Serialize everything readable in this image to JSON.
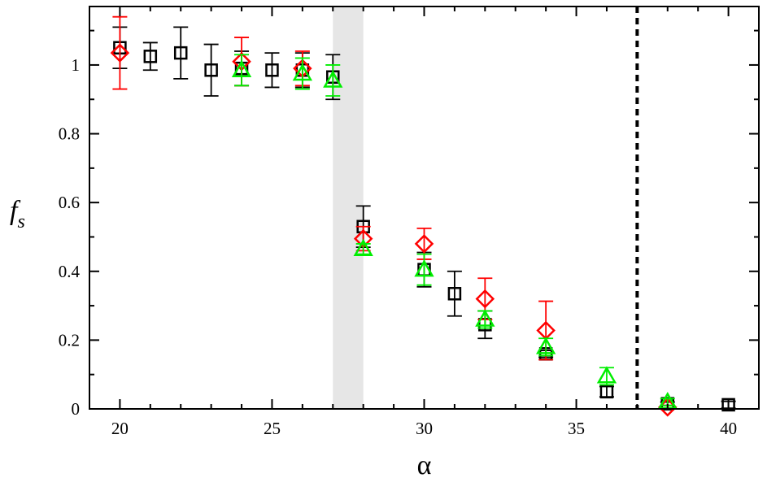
{
  "chart_data": {
    "type": "scatter",
    "title": "",
    "xlabel": "α",
    "ylabel": "f",
    "ylabel_subscript": "s",
    "xlim": [
      19,
      41
    ],
    "ylim": [
      0,
      1.17
    ],
    "xticks": [
      20,
      25,
      30,
      35,
      40
    ],
    "xtick_labels": [
      "20",
      "25",
      "30",
      "35",
      "40"
    ],
    "yticks": [
      0,
      0.2,
      0.4,
      0.6,
      0.8,
      1
    ],
    "ytick_labels": [
      "0",
      "0.2",
      "0.4",
      "0.6",
      "0.8",
      "1"
    ],
    "grid": false,
    "legend": "none",
    "shaded_band": {
      "x": [
        27,
        28
      ],
      "color": "#e6e6e6"
    },
    "vertical_line": {
      "x": 37,
      "style": "dashed",
      "color": "#000000"
    },
    "series": [
      {
        "marker": "square",
        "color": "#000000",
        "points": [
          {
            "x": 20,
            "y": 1.05,
            "err": 0.06
          },
          {
            "x": 21,
            "y": 1.025,
            "err": 0.04
          },
          {
            "x": 22,
            "y": 1.035,
            "err": 0.075
          },
          {
            "x": 23,
            "y": 0.985,
            "err": 0.075
          },
          {
            "x": 24,
            "y": 0.99,
            "err": 0.05
          },
          {
            "x": 25,
            "y": 0.985,
            "err": 0.05
          },
          {
            "x": 26,
            "y": 0.985,
            "err": 0.05
          },
          {
            "x": 27,
            "y": 0.965,
            "err": 0.065
          },
          {
            "x": 28,
            "y": 0.53,
            "err": 0.06
          },
          {
            "x": 30,
            "y": 0.405,
            "err": 0.05
          },
          {
            "x": 31,
            "y": 0.335,
            "err": 0.065
          },
          {
            "x": 32,
            "y": 0.245,
            "err": 0.04
          },
          {
            "x": 34,
            "y": 0.16,
            "err": 0.01
          },
          {
            "x": 36,
            "y": 0.05,
            "err": 0.015
          },
          {
            "x": 38,
            "y": 0.015,
            "err": 0.005
          },
          {
            "x": 40,
            "y": 0.012,
            "err": 0.01
          }
        ]
      },
      {
        "marker": "diamond",
        "color": "#ff0000",
        "points": [
          {
            "x": 20,
            "y": 1.035,
            "err": 0.105
          },
          {
            "x": 24,
            "y": 1.01,
            "err": 0.07
          },
          {
            "x": 26,
            "y": 0.99,
            "err": 0.05
          },
          {
            "x": 28,
            "y": 0.495,
            "err": 0.035
          },
          {
            "x": 30,
            "y": 0.48,
            "err": 0.045
          },
          {
            "x": 32,
            "y": 0.32,
            "err": 0.06
          },
          {
            "x": 34,
            "y": 0.228,
            "err": 0.085
          },
          {
            "x": 38,
            "y": 0.005,
            "err": 0.005
          }
        ]
      },
      {
        "marker": "triangle",
        "color": "#00ee00",
        "points": [
          {
            "x": 24,
            "y": 0.985,
            "err": 0.045
          },
          {
            "x": 26,
            "y": 0.975,
            "err": 0.045
          },
          {
            "x": 27,
            "y": 0.955,
            "err": 0.045
          },
          {
            "x": 28,
            "y": 0.465,
            "err": 0.015
          },
          {
            "x": 30,
            "y": 0.405,
            "err": 0.045
          },
          {
            "x": 32,
            "y": 0.26,
            "err": 0.025
          },
          {
            "x": 34,
            "y": 0.18,
            "err": 0.025
          },
          {
            "x": 36,
            "y": 0.095,
            "err": 0.025
          },
          {
            "x": 38,
            "y": 0.02,
            "err": 0.01
          }
        ]
      }
    ]
  }
}
